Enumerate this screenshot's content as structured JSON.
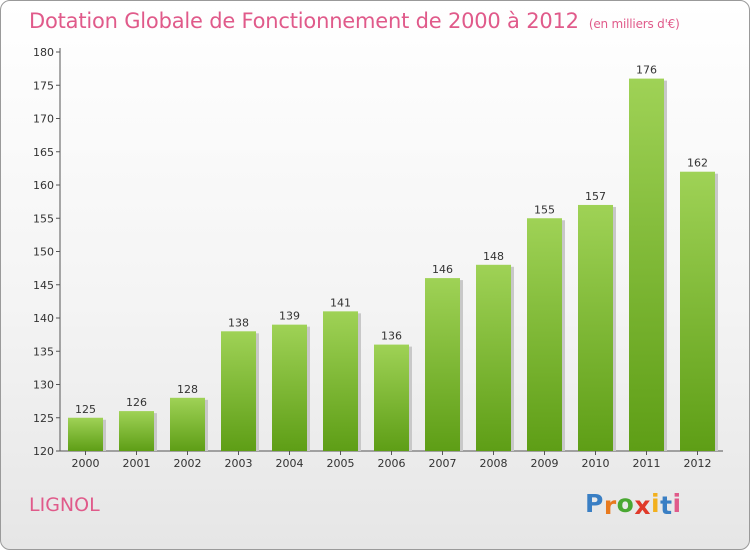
{
  "chart_data": {
    "type": "bar",
    "title": "Dotation Globale de Fonctionnement de 2000 à 2012",
    "unit_note": "(en milliers d'€)",
    "categories": [
      "2000",
      "2001",
      "2002",
      "2003",
      "2004",
      "2005",
      "2006",
      "2007",
      "2008",
      "2009",
      "2010",
      "2011",
      "2012"
    ],
    "values": [
      125,
      126,
      128,
      138,
      139,
      141,
      136,
      146,
      148,
      155,
      157,
      176,
      162
    ],
    "ylim": [
      120,
      180
    ],
    "yticks": [
      120,
      125,
      130,
      135,
      140,
      145,
      150,
      155,
      160,
      165,
      170,
      175,
      180
    ],
    "grid": false,
    "bar_color": "#7cc030",
    "title_color": "#e05a8a"
  },
  "commune": "LIGNOL",
  "brand": {
    "letters": [
      "P",
      "r",
      "o",
      "x",
      "i",
      "t",
      "i"
    ],
    "colors": [
      "#3a7fc4",
      "#e87a1e",
      "#4aa832",
      "#e03a2a",
      "#f2b01e",
      "#3a7fc4",
      "#e05a8a"
    ]
  }
}
